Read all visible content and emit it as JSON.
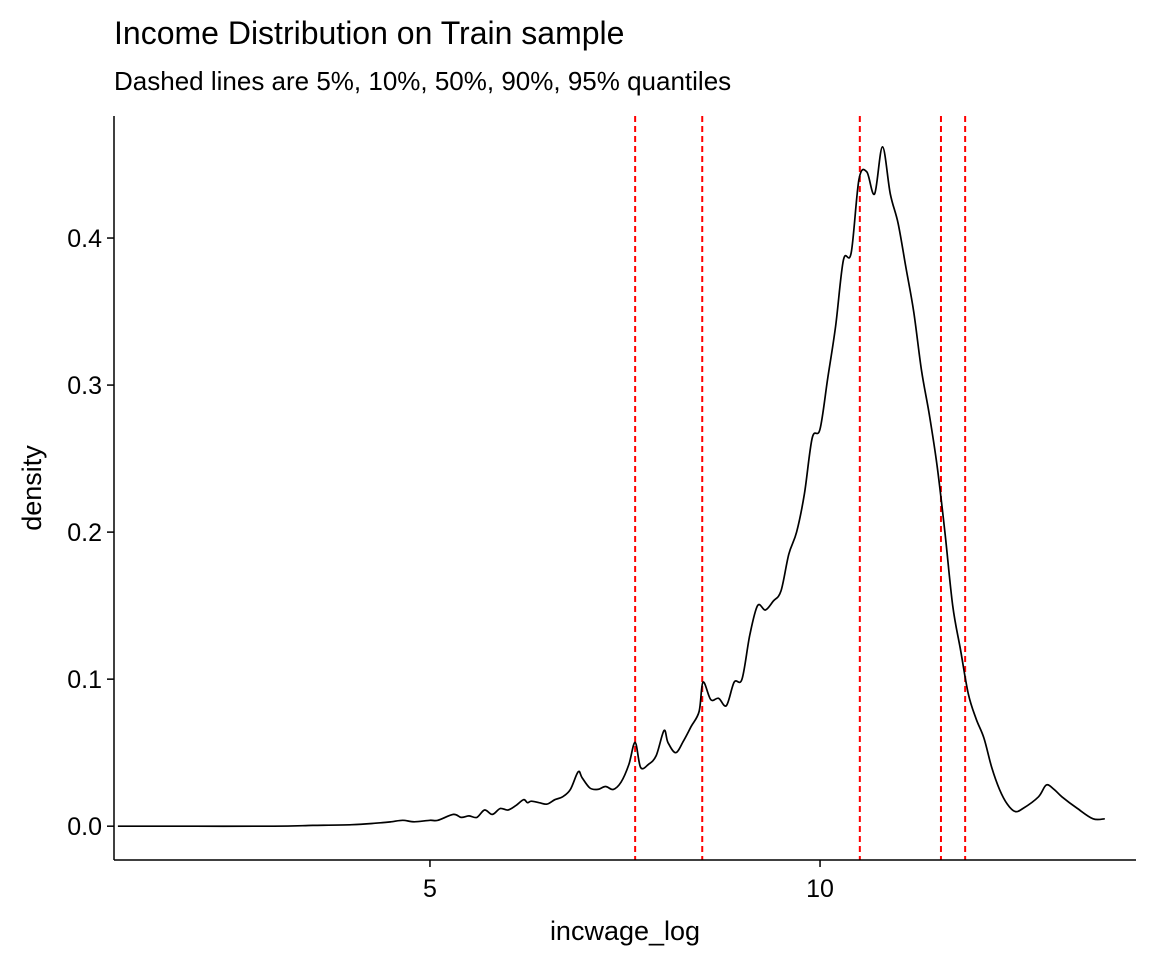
{
  "chart_data": {
    "type": "line",
    "title": "Income Distribution on Train sample",
    "subtitle": "Dashed lines are 5%, 10%, 50%, 90%, 95% quantiles",
    "xlabel": "incwage_log",
    "ylabel": "density",
    "xlim": [
      0.95,
      14.05
    ],
    "ylim": [
      -0.023,
      0.483
    ],
    "x_ticks": [
      5,
      10
    ],
    "x_tick_labels": [
      "5",
      "10"
    ],
    "y_ticks": [
      0.0,
      0.1,
      0.2,
      0.3,
      0.4
    ],
    "y_tick_labels": [
      "0.0",
      "0.1",
      "0.2",
      "0.3",
      "0.4"
    ],
    "grid": false,
    "legend": "none",
    "line_color": "#000000",
    "quantile_color": "#ff0000",
    "quantiles": [
      7.63,
      8.49,
      10.51,
      11.55,
      11.86
    ],
    "series": [
      {
        "x": [
          1.0,
          2.0,
          3.0,
          3.5,
          4.0,
          4.3,
          4.5,
          4.65,
          4.8,
          5.0,
          5.1,
          5.3,
          5.4,
          5.5,
          5.6,
          5.7,
          5.8,
          5.9,
          6.0,
          6.1,
          6.2,
          6.25,
          6.3,
          6.4,
          6.5,
          6.6,
          6.7,
          6.8,
          6.9,
          6.95,
          7.05,
          7.15,
          7.25,
          7.35,
          7.45,
          7.55,
          7.63,
          7.7,
          7.8,
          7.9,
          8.0,
          8.05,
          8.15,
          8.25,
          8.35,
          8.45,
          8.5,
          8.6,
          8.7,
          8.8,
          8.9,
          9.0,
          9.1,
          9.2,
          9.3,
          9.4,
          9.5,
          9.6,
          9.7,
          9.8,
          9.9,
          10.0,
          10.1,
          10.2,
          10.3,
          10.4,
          10.5,
          10.6,
          10.7,
          10.8,
          10.9,
          11.0,
          11.1,
          11.2,
          11.3,
          11.4,
          11.5,
          11.6,
          11.7,
          11.8,
          11.9,
          12.0,
          12.1,
          12.2,
          12.3,
          12.4,
          12.5,
          12.6,
          12.8,
          12.9,
          13.0,
          13.1,
          13.3,
          13.5,
          13.65
        ],
        "y": [
          0.0,
          0.0,
          0.0,
          0.0005,
          0.001,
          0.002,
          0.003,
          0.004,
          0.003,
          0.004,
          0.004,
          0.008,
          0.006,
          0.007,
          0.006,
          0.011,
          0.008,
          0.012,
          0.011,
          0.014,
          0.018,
          0.016,
          0.017,
          0.016,
          0.015,
          0.018,
          0.02,
          0.025,
          0.037,
          0.033,
          0.026,
          0.025,
          0.027,
          0.025,
          0.03,
          0.042,
          0.057,
          0.04,
          0.042,
          0.048,
          0.065,
          0.057,
          0.05,
          0.058,
          0.068,
          0.078,
          0.098,
          0.086,
          0.087,
          0.082,
          0.098,
          0.1,
          0.13,
          0.15,
          0.147,
          0.153,
          0.16,
          0.185,
          0.2,
          0.226,
          0.264,
          0.27,
          0.305,
          0.34,
          0.385,
          0.39,
          0.44,
          0.445,
          0.43,
          0.462,
          0.43,
          0.41,
          0.38,
          0.35,
          0.31,
          0.28,
          0.245,
          0.2,
          0.15,
          0.12,
          0.09,
          0.073,
          0.06,
          0.04,
          0.025,
          0.015,
          0.01,
          0.012,
          0.02,
          0.028,
          0.025,
          0.02,
          0.012,
          0.005,
          0.005
        ]
      }
    ]
  }
}
